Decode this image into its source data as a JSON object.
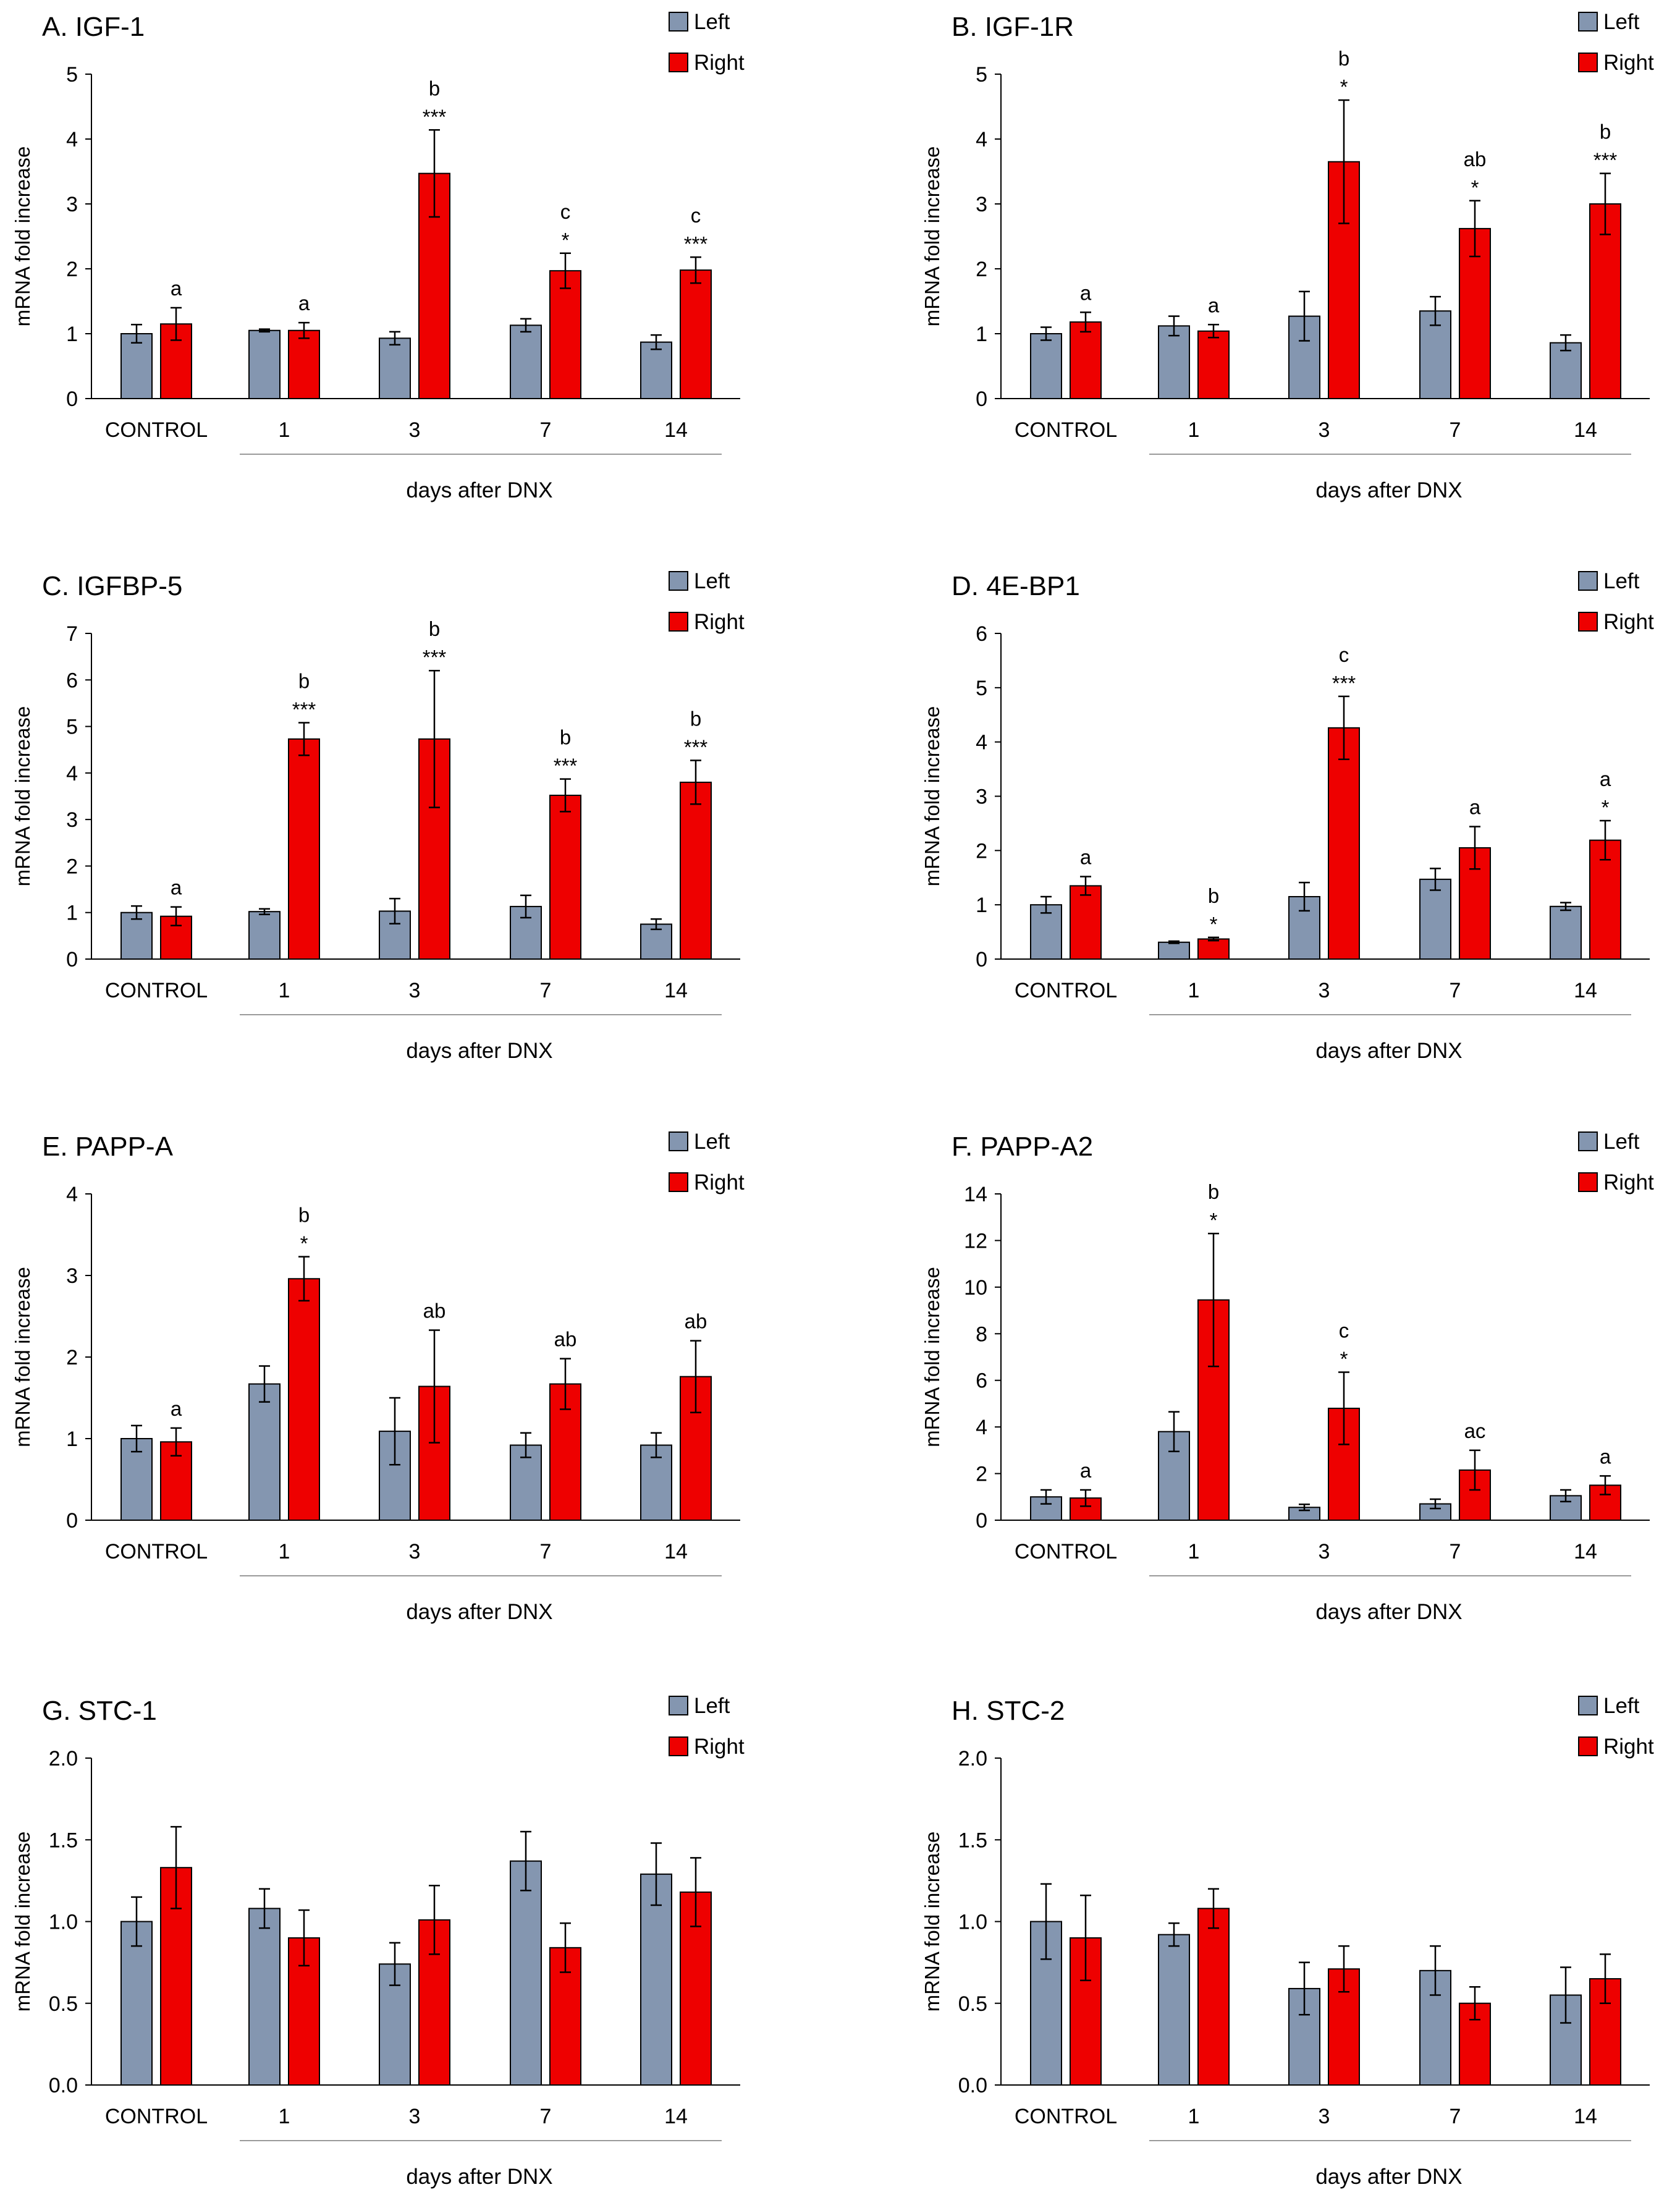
{
  "chart_data": [
    {
      "type": "bar",
      "panel": "A",
      "title": "A. IGF-1",
      "categories": [
        "CONTROL",
        "1",
        "3",
        "7",
        "14"
      ],
      "xlabel": "days after DNX",
      "ylabel": "mRNA fold increase",
      "ylim": [
        0,
        5
      ],
      "yticks": [
        "0",
        "1",
        "2",
        "3",
        "4",
        "5"
      ],
      "legend": [
        "Left",
        "Right"
      ],
      "series": [
        {
          "name": "Left",
          "color": "#8496b0",
          "values": [
            1.0,
            1.05,
            0.93,
            1.13,
            0.87
          ],
          "errors": [
            0.14,
            0.02,
            0.1,
            0.1,
            0.11
          ]
        },
        {
          "name": "Right",
          "color": "#ee0000",
          "values": [
            1.15,
            1.05,
            3.47,
            1.97,
            1.98
          ],
          "errors": [
            0.25,
            0.12,
            0.67,
            0.27,
            0.2
          ]
        }
      ],
      "annotations": [
        {
          "series": 1,
          "index": 0,
          "letter": "a",
          "stars": ""
        },
        {
          "series": 1,
          "index": 1,
          "letter": "a",
          "stars": ""
        },
        {
          "series": 1,
          "index": 2,
          "letter": "b",
          "stars": "***"
        },
        {
          "series": 1,
          "index": 3,
          "letter": "c",
          "stars": "*"
        },
        {
          "series": 1,
          "index": 4,
          "letter": "c",
          "stars": "***"
        }
      ]
    },
    {
      "type": "bar",
      "panel": "B",
      "title": "B. IGF-1R",
      "categories": [
        "CONTROL",
        "1",
        "3",
        "7",
        "14"
      ],
      "xlabel": "days after DNX",
      "ylabel": "mRNA fold increase",
      "ylim": [
        0,
        5
      ],
      "yticks": [
        "0",
        "1",
        "2",
        "3",
        "4",
        "5"
      ],
      "legend": [
        "Left",
        "Right"
      ],
      "series": [
        {
          "name": "Left",
          "color": "#8496b0",
          "values": [
            1.0,
            1.12,
            1.27,
            1.35,
            0.86
          ],
          "errors": [
            0.1,
            0.15,
            0.38,
            0.22,
            0.12
          ]
        },
        {
          "name": "Right",
          "color": "#ee0000",
          "values": [
            1.18,
            1.04,
            3.65,
            2.62,
            3.0
          ],
          "errors": [
            0.15,
            0.1,
            0.95,
            0.43,
            0.47
          ]
        }
      ],
      "annotations": [
        {
          "series": 1,
          "index": 0,
          "letter": "a",
          "stars": ""
        },
        {
          "series": 1,
          "index": 1,
          "letter": "a",
          "stars": ""
        },
        {
          "series": 1,
          "index": 2,
          "letter": "b",
          "stars": "*"
        },
        {
          "series": 1,
          "index": 3,
          "letter": "ab",
          "stars": "*"
        },
        {
          "series": 1,
          "index": 4,
          "letter": "b",
          "stars": "***"
        }
      ]
    },
    {
      "type": "bar",
      "panel": "C",
      "title": "C. IGFBP-5",
      "categories": [
        "CONTROL",
        "1",
        "3",
        "7",
        "14"
      ],
      "xlabel": "days after DNX",
      "ylabel": "mRNA fold increase",
      "ylim": [
        0,
        7
      ],
      "yticks": [
        "0",
        "1",
        "2",
        "3",
        "4",
        "5",
        "6",
        "7"
      ],
      "legend": [
        "Left",
        "Right"
      ],
      "series": [
        {
          "name": "Left",
          "color": "#8496b0",
          "values": [
            1.0,
            1.02,
            1.03,
            1.13,
            0.75
          ],
          "errors": [
            0.14,
            0.06,
            0.27,
            0.24,
            0.11
          ]
        },
        {
          "name": "Right",
          "color": "#ee0000",
          "values": [
            0.92,
            4.73,
            4.73,
            3.52,
            3.8
          ],
          "errors": [
            0.2,
            0.35,
            1.47,
            0.35,
            0.47
          ]
        }
      ],
      "annotations": [
        {
          "series": 1,
          "index": 0,
          "letter": "a",
          "stars": ""
        },
        {
          "series": 1,
          "index": 1,
          "letter": "b",
          "stars": "***"
        },
        {
          "series": 1,
          "index": 2,
          "letter": "b",
          "stars": "***"
        },
        {
          "series": 1,
          "index": 3,
          "letter": "b",
          "stars": "***"
        },
        {
          "series": 1,
          "index": 4,
          "letter": "b",
          "stars": "***"
        }
      ]
    },
    {
      "type": "bar",
      "panel": "D",
      "title": "D. 4E-BP1",
      "categories": [
        "CONTROL",
        "1",
        "3",
        "7",
        "14"
      ],
      "xlabel": "days after DNX",
      "ylabel": "mRNA fold increase",
      "ylim": [
        0,
        6
      ],
      "yticks": [
        "0",
        "1",
        "2",
        "3",
        "4",
        "5",
        "6"
      ],
      "legend": [
        "Left",
        "Right"
      ],
      "series": [
        {
          "name": "Left",
          "color": "#8496b0",
          "values": [
            1.0,
            0.31,
            1.15,
            1.47,
            0.97
          ],
          "errors": [
            0.15,
            0.02,
            0.26,
            0.2,
            0.07
          ]
        },
        {
          "name": "Right",
          "color": "#ee0000",
          "values": [
            1.35,
            0.37,
            4.26,
            2.05,
            2.19
          ],
          "errors": [
            0.17,
            0.03,
            0.58,
            0.39,
            0.36
          ]
        }
      ],
      "annotations": [
        {
          "series": 1,
          "index": 0,
          "letter": "a",
          "stars": ""
        },
        {
          "series": 1,
          "index": 1,
          "letter": "b",
          "stars": "*"
        },
        {
          "series": 1,
          "index": 2,
          "letter": "c",
          "stars": "***"
        },
        {
          "series": 1,
          "index": 3,
          "letter": "a",
          "stars": ""
        },
        {
          "series": 1,
          "index": 4,
          "letter": "a",
          "stars": "*"
        }
      ]
    },
    {
      "type": "bar",
      "panel": "E",
      "title": "E. PAPP-A",
      "categories": [
        "CONTROL",
        "1",
        "3",
        "7",
        "14"
      ],
      "xlabel": "days after DNX",
      "ylabel": "mRNA fold increase",
      "ylim": [
        0,
        4
      ],
      "yticks": [
        "0",
        "1",
        "2",
        "3",
        "4"
      ],
      "legend": [
        "Left",
        "Right"
      ],
      "series": [
        {
          "name": "Left",
          "color": "#8496b0",
          "values": [
            1.0,
            1.67,
            1.09,
            0.92,
            0.92
          ],
          "errors": [
            0.16,
            0.22,
            0.41,
            0.15,
            0.15
          ]
        },
        {
          "name": "Right",
          "color": "#ee0000",
          "values": [
            0.96,
            2.96,
            1.64,
            1.67,
            1.76
          ],
          "errors": [
            0.17,
            0.27,
            0.69,
            0.31,
            0.44
          ]
        }
      ],
      "annotations": [
        {
          "series": 1,
          "index": 0,
          "letter": "a",
          "stars": ""
        },
        {
          "series": 1,
          "index": 1,
          "letter": "b",
          "stars": "*"
        },
        {
          "series": 1,
          "index": 2,
          "letter": "ab",
          "stars": ""
        },
        {
          "series": 1,
          "index": 3,
          "letter": "ab",
          "stars": ""
        },
        {
          "series": 1,
          "index": 4,
          "letter": "ab",
          "stars": ""
        }
      ]
    },
    {
      "type": "bar",
      "panel": "F",
      "title": "F. PAPP-A2",
      "categories": [
        "CONTROL",
        "1",
        "3",
        "7",
        "14"
      ],
      "xlabel": "days after DNX",
      "ylabel": "mRNA fold increase",
      "ylim": [
        0,
        14
      ],
      "yticks": [
        "0",
        "2",
        "4",
        "6",
        "8",
        "10",
        "12",
        "14"
      ],
      "legend": [
        "Left",
        "Right"
      ],
      "series": [
        {
          "name": "Left",
          "color": "#8496b0",
          "values": [
            1.0,
            3.8,
            0.55,
            0.7,
            1.05
          ],
          "errors": [
            0.3,
            0.85,
            0.13,
            0.2,
            0.25
          ]
        },
        {
          "name": "Right",
          "color": "#ee0000",
          "values": [
            0.95,
            9.45,
            4.8,
            2.15,
            1.5
          ],
          "errors": [
            0.35,
            2.85,
            1.55,
            0.85,
            0.4
          ]
        }
      ],
      "annotations": [
        {
          "series": 1,
          "index": 0,
          "letter": "a",
          "stars": ""
        },
        {
          "series": 1,
          "index": 1,
          "letter": "b",
          "stars": "*"
        },
        {
          "series": 1,
          "index": 2,
          "letter": "c",
          "stars": "*"
        },
        {
          "series": 1,
          "index": 3,
          "letter": "ac",
          "stars": ""
        },
        {
          "series": 1,
          "index": 4,
          "letter": "a",
          "stars": ""
        }
      ]
    },
    {
      "type": "bar",
      "panel": "G",
      "title": "G. STC-1",
      "categories": [
        "CONTROL",
        "1",
        "3",
        "7",
        "14"
      ],
      "xlabel": "days after DNX",
      "ylabel": "mRNA fold increase",
      "ylim": [
        0,
        2
      ],
      "yticks": [
        "0.0",
        "0.5",
        "1.0",
        "1.5",
        "2.0"
      ],
      "legend": [
        "Left",
        "Right"
      ],
      "series": [
        {
          "name": "Left",
          "color": "#8496b0",
          "values": [
            1.0,
            1.08,
            0.74,
            1.37,
            1.29
          ],
          "errors": [
            0.15,
            0.12,
            0.13,
            0.18,
            0.19
          ]
        },
        {
          "name": "Right",
          "color": "#ee0000",
          "values": [
            1.33,
            0.9,
            1.01,
            0.84,
            1.18
          ],
          "errors": [
            0.25,
            0.17,
            0.21,
            0.15,
            0.21
          ]
        }
      ],
      "annotations": []
    },
    {
      "type": "bar",
      "panel": "H",
      "title": "H. STC-2",
      "categories": [
        "CONTROL",
        "1",
        "3",
        "7",
        "14"
      ],
      "xlabel": "days after DNX",
      "ylabel": "mRNA fold increase",
      "ylim": [
        0,
        2
      ],
      "yticks": [
        "0.0",
        "0.5",
        "1.0",
        "1.5",
        "2.0"
      ],
      "legend": [
        "Left",
        "Right"
      ],
      "series": [
        {
          "name": "Left",
          "color": "#8496b0",
          "values": [
            1.0,
            0.92,
            0.59,
            0.7,
            0.55
          ],
          "errors": [
            0.23,
            0.07,
            0.16,
            0.15,
            0.17
          ]
        },
        {
          "name": "Right",
          "color": "#ee0000",
          "values": [
            0.9,
            1.08,
            0.71,
            0.5,
            0.65
          ],
          "errors": [
            0.26,
            0.12,
            0.14,
            0.1,
            0.15
          ]
        }
      ],
      "annotations": []
    }
  ]
}
